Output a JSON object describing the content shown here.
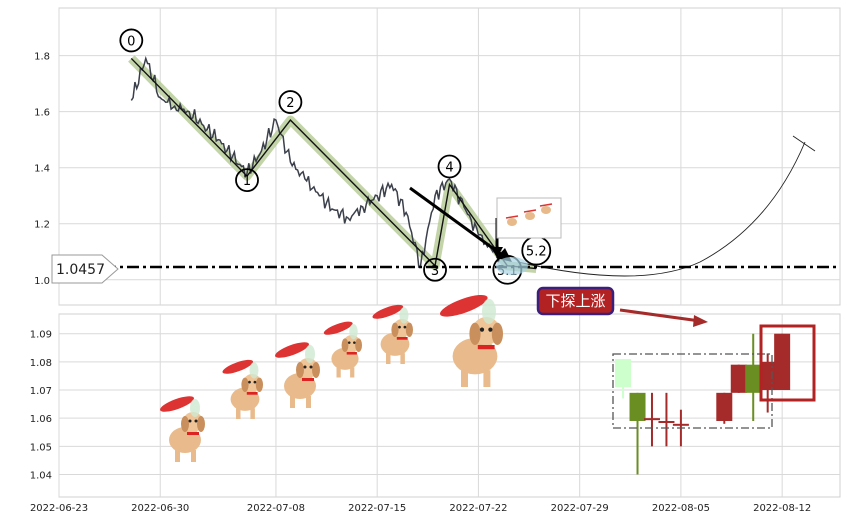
{
  "chart_data": [
    {
      "type": "line",
      "panel": "top",
      "ylim": [
        0.91,
        1.97
      ],
      "yticks": [
        1.0,
        1.2,
        1.4,
        1.6,
        1.8
      ],
      "ytick_labels": [
        "1.0",
        "1.2",
        "1.4",
        "1.6",
        "1.8"
      ],
      "series": [
        {
          "x": [
            "2022-06-28",
            "2022-06-29",
            "2022-06-30",
            "2022-07-01",
            "2022-07-02",
            "2022-07-03",
            "2022-07-04",
            "2022-07-05",
            "2022-07-06",
            "2022-07-07",
            "2022-07-08",
            "2022-07-09",
            "2022-07-10",
            "2022-07-11",
            "2022-07-12",
            "2022-07-13",
            "2022-07-14",
            "2022-07-15",
            "2022-07-16",
            "2022-07-17",
            "2022-07-18",
            "2022-07-19",
            "2022-07-20",
            "2022-07-21",
            "2022-07-22",
            "2022-07-23",
            "2022-07-24"
          ],
          "values": [
            1.64,
            1.79,
            1.65,
            1.62,
            1.6,
            1.55,
            1.5,
            1.44,
            1.38,
            1.46,
            1.57,
            1.42,
            1.36,
            1.3,
            1.25,
            1.22,
            1.26,
            1.3,
            1.34,
            1.24,
            1.05,
            1.3,
            1.36,
            1.26,
            1.16,
            1.1,
            1.07
          ]
        }
      ],
      "wave_points": [
        {
          "label": "0",
          "x": "2022-06-28",
          "y": 1.79
        },
        {
          "label": "1",
          "x": "2022-07-06",
          "y": 1.37
        },
        {
          "label": "2",
          "x": "2022-07-09",
          "y": 1.57
        },
        {
          "label": "3",
          "x": "2022-07-19",
          "y": 1.05
        },
        {
          "label": "4",
          "x": "2022-07-20",
          "y": 1.34
        },
        {
          "label": "5.1",
          "x": "2022-07-24",
          "y": 1.05
        },
        {
          "label": "5.2",
          "x": "2022-07-26",
          "y": 1.04
        }
      ],
      "reference_line": {
        "value": 1.0457,
        "label": "1.0457"
      }
    },
    {
      "type": "candlestick",
      "panel": "bottom",
      "ylim": [
        1.032,
        1.097
      ],
      "yticks": [
        1.04,
        1.05,
        1.06,
        1.07,
        1.08,
        1.09
      ],
      "ytick_labels": [
        "1.04",
        "1.05",
        "1.06",
        "1.07",
        "1.08",
        "1.09"
      ],
      "x_tick_labels": [
        "2022-06-23",
        "2022-06-30",
        "2022-07-08",
        "2022-07-15",
        "2022-07-22",
        "2022-07-29",
        "2022-08-05",
        "2022-08-12"
      ],
      "candles": [
        {
          "date": "2022-08-01",
          "open": 1.071,
          "close": 1.081,
          "high": 1.081,
          "low": 1.067,
          "color": "#ccffcc"
        },
        {
          "date": "2022-08-02",
          "open": 1.069,
          "close": 1.059,
          "high": 1.069,
          "low": 1.04,
          "color": "#6b8e23"
        },
        {
          "date": "2022-08-03",
          "open": 1.06,
          "close": 1.06,
          "high": 1.069,
          "low": 1.05,
          "color": "#a52a2a"
        },
        {
          "date": "2022-08-04",
          "open": 1.059,
          "close": 1.059,
          "high": 1.069,
          "low": 1.05,
          "color": "#a52a2a"
        },
        {
          "date": "2022-08-05",
          "open": 1.058,
          "close": 1.058,
          "high": 1.063,
          "low": 1.05,
          "color": "#a52a2a"
        },
        {
          "date": "2022-08-08",
          "open": 1.059,
          "close": 1.069,
          "high": 1.069,
          "low": 1.058,
          "color": "#a52a2a"
        },
        {
          "date": "2022-08-09",
          "open": 1.069,
          "close": 1.079,
          "high": 1.079,
          "low": 1.069,
          "color": "#a52a2a"
        },
        {
          "date": "2022-08-10",
          "open": 1.079,
          "close": 1.069,
          "high": 1.09,
          "low": 1.059,
          "color": "#6b8e23"
        },
        {
          "date": "2022-08-11",
          "open": 1.07,
          "close": 1.08,
          "high": 1.083,
          "low": 1.062,
          "color": "#a52a2a"
        },
        {
          "date": "2022-08-12",
          "open": 1.07,
          "close": 1.09,
          "high": 1.09,
          "low": 1.07,
          "color": "#a52a2a"
        }
      ],
      "annotation": {
        "text": "下探上涨"
      }
    }
  ],
  "colors": {
    "price_line": "#3a3f4a",
    "wave_band": "#b9cc9a",
    "bull": "#a52a2a",
    "bear": "#6b8e23",
    "annotation_bg": "#b22222",
    "annotation_border": "#3b1f7a",
    "grid": "#d9d9d9"
  }
}
